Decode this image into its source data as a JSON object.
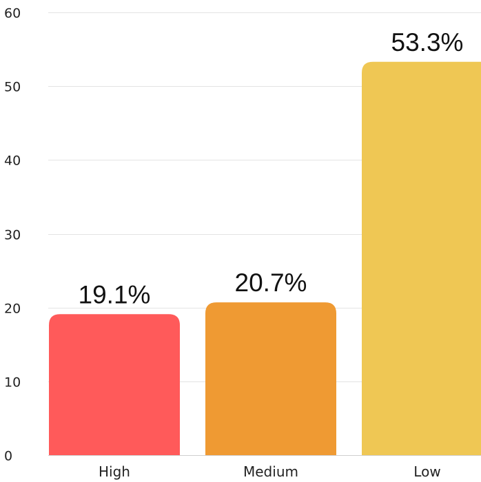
{
  "chart_data": {
    "type": "bar",
    "categories": [
      "High",
      "Medium",
      "Low"
    ],
    "values": [
      19.1,
      20.7,
      53.3
    ],
    "data_labels": [
      "19.1%",
      "20.7%",
      "53.3%"
    ],
    "colors": [
      "#ff5a5a",
      "#ef9a33",
      "#efc754"
    ],
    "y_ticks": [
      "0",
      "10",
      "20",
      "30",
      "40",
      "50",
      "60"
    ],
    "ylim": [
      0,
      60
    ],
    "grid": true,
    "legend": "none",
    "title": "",
    "xlabel": "",
    "ylabel": ""
  }
}
